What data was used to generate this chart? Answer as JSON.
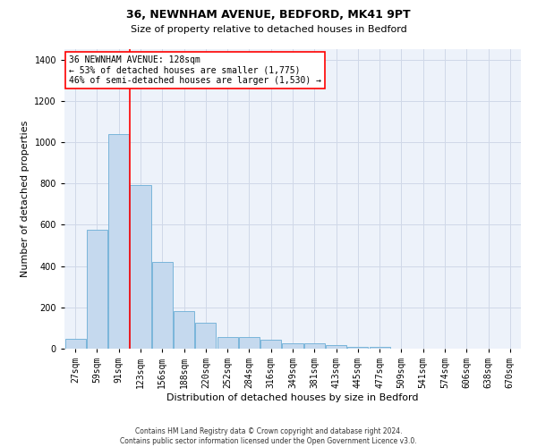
{
  "title1": "36, NEWNHAM AVENUE, BEDFORD, MK41 9PT",
  "title2": "Size of property relative to detached houses in Bedford",
  "xlabel": "Distribution of detached houses by size in Bedford",
  "ylabel": "Number of detached properties",
  "categories": [
    "27sqm",
    "59sqm",
    "91sqm",
    "123sqm",
    "156sqm",
    "188sqm",
    "220sqm",
    "252sqm",
    "284sqm",
    "316sqm",
    "349sqm",
    "381sqm",
    "413sqm",
    "445sqm",
    "477sqm",
    "509sqm",
    "541sqm",
    "574sqm",
    "606sqm",
    "638sqm",
    "670sqm"
  ],
  "values": [
    47,
    575,
    1040,
    790,
    420,
    180,
    125,
    57,
    57,
    43,
    28,
    26,
    18,
    10,
    7,
    0,
    0,
    0,
    0,
    0,
    0
  ],
  "bar_color": "#c5d9ee",
  "bar_edge_color": "#6baed6",
  "red_line_x": 2.5,
  "red_line_label": "36 NEWNHAM AVENUE: 128sqm",
  "annotation_line2": "← 53% of detached houses are smaller (1,775)",
  "annotation_line3": "46% of semi-detached houses are larger (1,530) →",
  "ylim": [
    0,
    1450
  ],
  "yticks": [
    0,
    200,
    400,
    600,
    800,
    1000,
    1200,
    1400
  ],
  "footnote1": "Contains HM Land Registry data © Crown copyright and database right 2024.",
  "footnote2": "Contains public sector information licensed under the Open Government Licence v3.0.",
  "grid_color": "#d0d8e8",
  "background_color": "#edf2fa",
  "title1_fontsize": 9,
  "title2_fontsize": 8,
  "tick_fontsize": 7,
  "ylabel_fontsize": 8,
  "xlabel_fontsize": 8,
  "footnote_fontsize": 5.5
}
